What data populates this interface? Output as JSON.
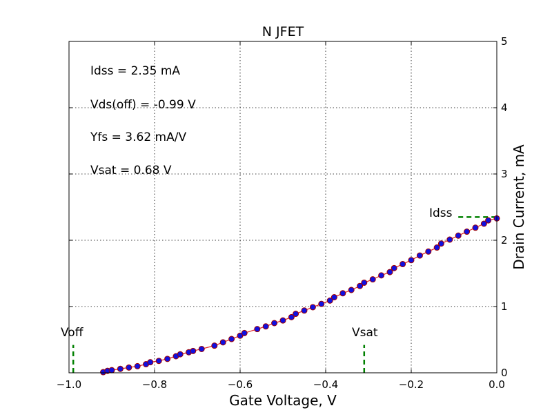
{
  "chart_data": {
    "type": "scatter",
    "title": "N JFET",
    "xlabel": "Gate Voltage, V",
    "ylabel": "Drain Current, mA",
    "xlim": [
      -1.0,
      0.0
    ],
    "ylim": [
      0,
      5
    ],
    "x_ticks": [
      -1.0,
      -0.8,
      -0.6,
      -0.4,
      -0.2,
      0.0
    ],
    "x_tick_labels": [
      "−1.0",
      "−0.8",
      "−0.6",
      "−0.4",
      "−0.2",
      "0.0"
    ],
    "y_ticks": [
      0,
      1,
      2,
      3,
      4,
      5
    ],
    "y_tick_labels": [
      "0",
      "1",
      "2",
      "3",
      "4",
      "5"
    ],
    "y_axis_side": "right",
    "grid": true,
    "annotations": [
      "Idss = 2.35 mA",
      "Vds(off) = -0.99 V",
      "Yfs = 3.62 mA/V",
      "Vsat = 0.68 V"
    ],
    "markers": {
      "voff": {
        "label": "Voff",
        "x": -0.99,
        "y_top": 0.42
      },
      "vsat": {
        "label": "Vsat",
        "x": -0.31,
        "y_top": 0.42
      },
      "idss": {
        "label": "Idss",
        "y": 2.35,
        "x_start": -0.09
      }
    },
    "colors": {
      "marker_fill": "#1010e0",
      "marker_edge": "#a00000",
      "fit_line": "#e02020",
      "reference": "#008000"
    },
    "series": [
      {
        "x": [
          -0.92,
          -0.91,
          -0.9,
          -0.88,
          -0.86,
          -0.84,
          -0.82,
          -0.81,
          -0.79,
          -0.77,
          -0.75,
          -0.74,
          -0.72,
          -0.71,
          -0.69,
          -0.66,
          -0.64,
          -0.62,
          -0.6,
          -0.59,
          -0.56,
          -0.54,
          -0.52,
          -0.5,
          -0.48,
          -0.47,
          -0.45,
          -0.43,
          -0.41,
          -0.39,
          -0.38,
          -0.36,
          -0.34,
          -0.32,
          -0.31,
          -0.29,
          -0.27,
          -0.25,
          -0.24,
          -0.22,
          -0.2,
          -0.18,
          -0.16,
          -0.14,
          -0.13,
          -0.11,
          -0.09,
          -0.07,
          -0.05,
          -0.03,
          -0.02,
          0.0
        ],
        "values": [
          0.01,
          0.03,
          0.04,
          0.06,
          0.08,
          0.1,
          0.13,
          0.16,
          0.18,
          0.21,
          0.25,
          0.28,
          0.31,
          0.33,
          0.36,
          0.41,
          0.46,
          0.51,
          0.56,
          0.6,
          0.66,
          0.7,
          0.75,
          0.79,
          0.84,
          0.89,
          0.94,
          0.99,
          1.04,
          1.09,
          1.14,
          1.2,
          1.25,
          1.31,
          1.36,
          1.41,
          1.47,
          1.52,
          1.58,
          1.64,
          1.7,
          1.77,
          1.83,
          1.89,
          1.95,
          2.01,
          2.07,
          2.13,
          2.19,
          2.25,
          2.3,
          2.33
        ]
      }
    ]
  }
}
